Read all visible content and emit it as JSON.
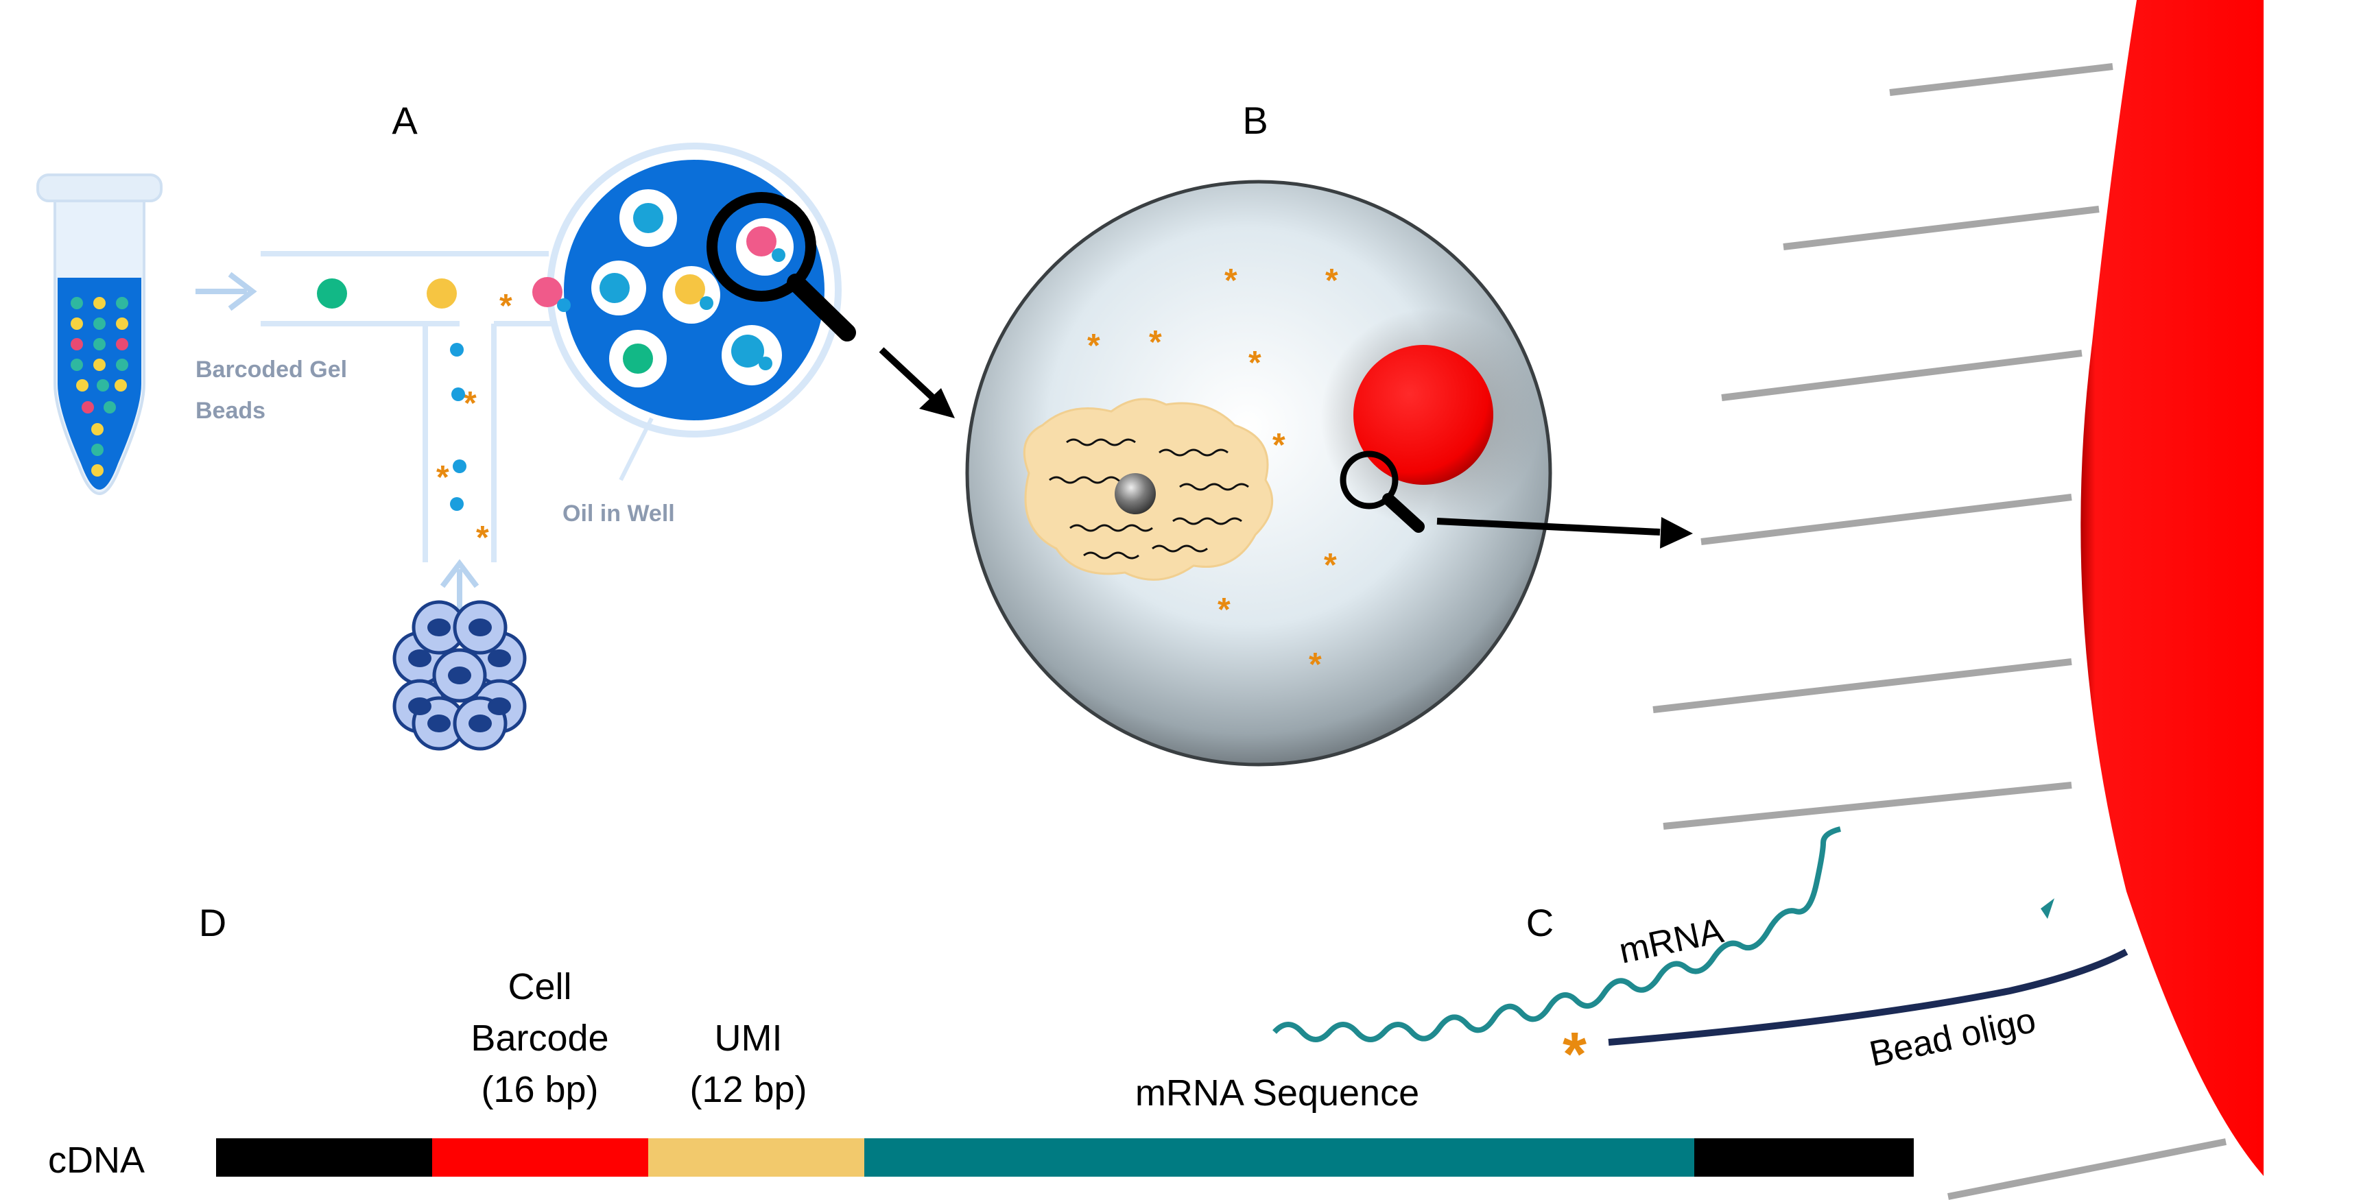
{
  "panels": {
    "a": "A",
    "b": "B",
    "c": "C",
    "d": "D"
  },
  "panel_a": {
    "beads_label_line1": "Barcoded Gel",
    "beads_label_line2": "Beads",
    "oil_label": "Oil in Well"
  },
  "panel_c": {
    "mrna_label": "mRNA",
    "oligo_label": "Bead oligo"
  },
  "panel_d": {
    "cdna_label": "cDNA",
    "segments": [
      {
        "line1": "",
        "line2": "",
        "line3": "",
        "color": "#000000"
      },
      {
        "line1": "Cell",
        "line2": "Barcode",
        "line3": "(16 bp)",
        "color": "#ff0000"
      },
      {
        "line1": "UMI",
        "line2": "(12 bp)",
        "line3": "",
        "color": "#f2c96c"
      },
      {
        "line1": "mRNA Sequence",
        "line2": "",
        "line3": "",
        "color": "#007b82"
      },
      {
        "line1": "",
        "line2": "",
        "line3": "",
        "color": "#000000"
      }
    ]
  },
  "colors": {
    "bead_red": "#ff0000",
    "well_blue": "#0b6fd9",
    "asterisk_orange": "#e88a10",
    "mrna_teal": "#1f8a8f",
    "oligo_navy": "#1b2a55"
  }
}
